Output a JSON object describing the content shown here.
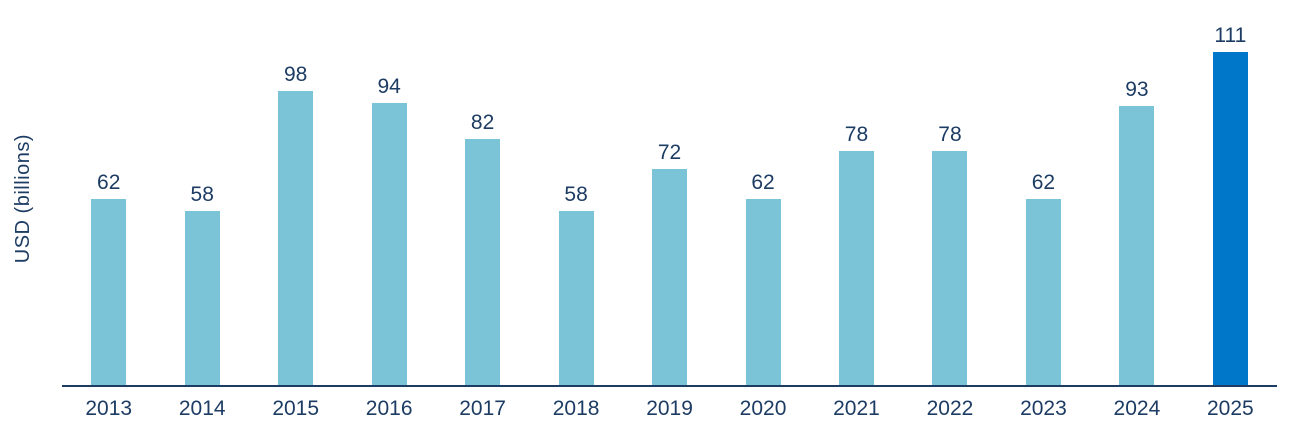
{
  "chart_data": {
    "type": "bar",
    "categories": [
      "2013",
      "2014",
      "2015",
      "2016",
      "2017",
      "2018",
      "2019",
      "2020",
      "2021",
      "2022",
      "2023",
      "2024",
      "2025"
    ],
    "values": [
      62,
      58,
      98,
      94,
      82,
      58,
      72,
      62,
      78,
      78,
      62,
      93,
      111
    ],
    "title": "",
    "xlabel": "",
    "ylabel": "USD (billions)",
    "ylim": [
      0,
      128
    ],
    "grid": false,
    "legend": "none",
    "value_labels": "above bars",
    "highlight_index": 12,
    "colors": {
      "bar": "#7BC4D7",
      "bar_highlight": "#0077C8",
      "text": "#1D3C63",
      "axis": "#1D3C63"
    }
  }
}
